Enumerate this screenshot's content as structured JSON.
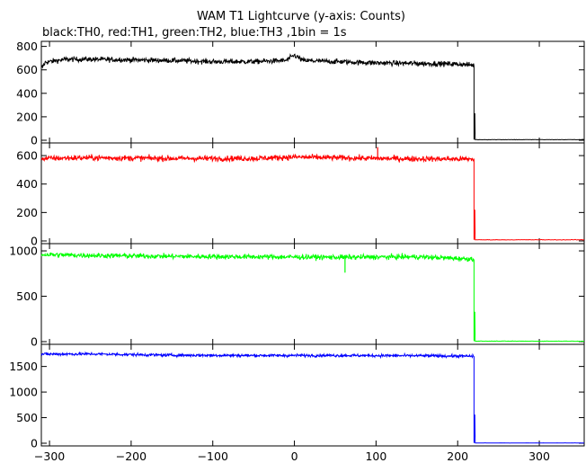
{
  "chart_data": {
    "type": "line",
    "title": "WAM T1 Lightcurve (y-axis: Counts)",
    "subtitle": "black:TH0, red:TH1, green:TH2, blue:TH3 ,1bin = 1s",
    "xlim": [
      -310,
      355
    ],
    "x_ticks": [
      -300,
      -200,
      -100,
      0,
      100,
      200,
      300
    ],
    "x_tick_labels": [
      "−300",
      "−200",
      "−100",
      "0",
      "100",
      "200",
      "300"
    ],
    "panels": [
      {
        "color": "#000000",
        "ylim": [
          0,
          820
        ],
        "y_ticks": [
          0,
          200,
          400,
          600,
          800
        ],
        "y_tick_labels": [
          "0",
          "200",
          "400",
          "600",
          "800"
        ],
        "profile": [
          [
            -310,
            610
          ],
          [
            -305,
            665
          ],
          [
            -280,
            690
          ],
          [
            -250,
            690
          ],
          [
            -150,
            680
          ],
          [
            -100,
            670
          ],
          [
            -50,
            670
          ],
          [
            -10,
            680
          ],
          [
            0,
            725
          ],
          [
            10,
            680
          ],
          [
            50,
            670
          ],
          [
            100,
            660
          ],
          [
            200,
            650
          ],
          [
            219,
            640
          ]
        ],
        "noise": 22,
        "drop_x": 220,
        "post_level": 5,
        "spikes": [
          {
            "x": 221,
            "y": 230
          }
        ]
      },
      {
        "color": "#ff0000",
        "ylim": [
          0,
          670
        ],
        "y_ticks": [
          0,
          200,
          400,
          600
        ],
        "y_tick_labels": [
          "0",
          "200",
          "400",
          "600"
        ],
        "profile": [
          [
            -310,
            580
          ],
          [
            -250,
            585
          ],
          [
            -150,
            580
          ],
          [
            -50,
            580
          ],
          [
            0,
            590
          ],
          [
            100,
            580
          ],
          [
            219,
            575
          ]
        ],
        "noise": 20,
        "drop_x": 220,
        "post_level": 8,
        "spikes": [
          {
            "x": 221,
            "y": 220
          },
          {
            "x": 102,
            "y": 660
          }
        ]
      },
      {
        "color": "#00ff00",
        "ylim": [
          0,
          1050
        ],
        "y_ticks": [
          0,
          500,
          1000
        ],
        "y_tick_labels": [
          "0",
          "500",
          "1000"
        ],
        "profile": [
          [
            -310,
            960
          ],
          [
            -250,
            950
          ],
          [
            -150,
            940
          ],
          [
            -50,
            935
          ],
          [
            50,
            930
          ],
          [
            150,
            935
          ],
          [
            219,
            910
          ]
        ],
        "noise": 28,
        "drop_x": 220,
        "post_level": 5,
        "spikes": [
          {
            "x": 221,
            "y": 330
          },
          {
            "x": 62,
            "y": 760
          }
        ]
      },
      {
        "color": "#0000ff",
        "ylim": [
          0,
          1880
        ],
        "y_ticks": [
          0,
          500,
          1000,
          1500
        ],
        "y_tick_labels": [
          "0",
          "500",
          "1000",
          "1500"
        ],
        "profile": [
          [
            -310,
            1740
          ],
          [
            -250,
            1745
          ],
          [
            -150,
            1720
          ],
          [
            -50,
            1715
          ],
          [
            50,
            1715
          ],
          [
            150,
            1710
          ],
          [
            219,
            1700
          ]
        ],
        "noise": 28,
        "drop_x": 220,
        "post_level": 5,
        "spikes": [
          {
            "x": 221,
            "y": 560
          }
        ]
      }
    ]
  }
}
